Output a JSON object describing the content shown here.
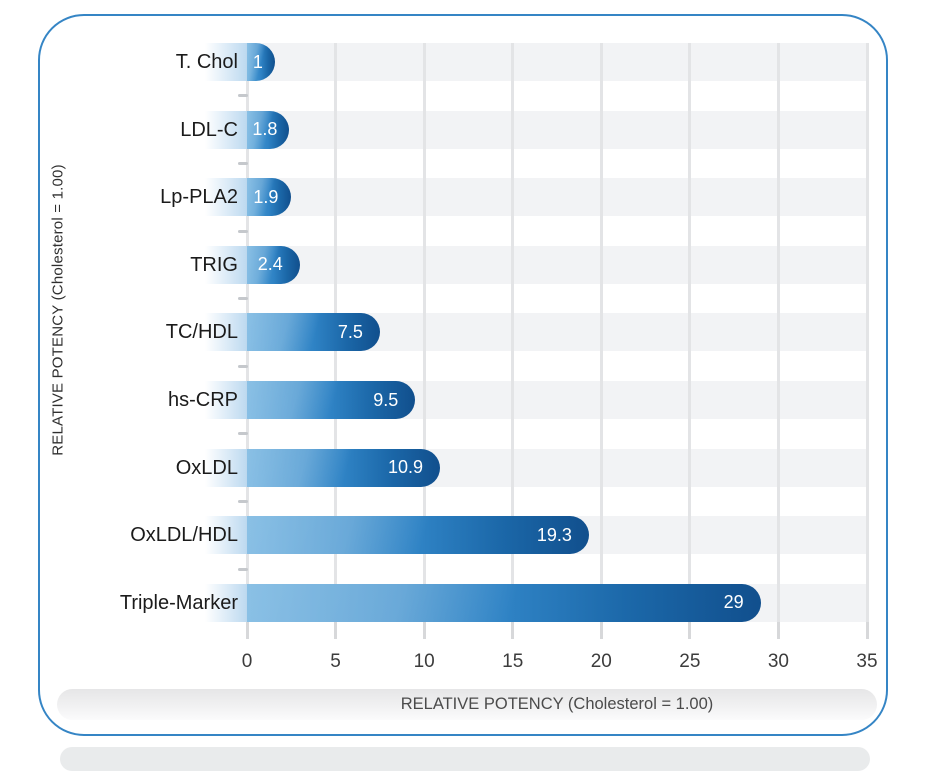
{
  "chart_data": {
    "type": "bar",
    "orientation": "horizontal",
    "title": "",
    "categories": [
      "T. Chol",
      "LDL-C",
      "Lp-PLA2",
      "TRIG",
      "TC/HDL",
      "hs-CRP",
      "OxLDL",
      "OxLDL/HDL",
      "Triple-Marker"
    ],
    "values": [
      1,
      1.8,
      1.9,
      2.4,
      7.5,
      9.5,
      10.9,
      19.3,
      29
    ],
    "value_labels": [
      "1",
      "1.8",
      "1.9",
      "2.4",
      "7.5",
      "9.5",
      "10.9",
      "19.3",
      "29"
    ],
    "xlabel": "RELATIVE POTENCY (Cholesterol = 1.00)",
    "ylabel": "RELATIVE POTENCY (Cholesterol = 1.00)",
    "xlim": [
      0,
      35
    ],
    "x_ticks": [
      0,
      5,
      10,
      15,
      20,
      25,
      30,
      35
    ],
    "grid": true,
    "legend": false
  },
  "colors": {
    "card_border": "#3585c5",
    "bar_light": "#58a5da",
    "bar_mid": "#2f83c5",
    "bar_dark": "#114f8d",
    "row_band": "#f2f3f5",
    "gridline": "#e3e4e6",
    "value_text": "#ffffff",
    "label_text": "#1b1b1b",
    "shadow": "#e9ebec"
  }
}
